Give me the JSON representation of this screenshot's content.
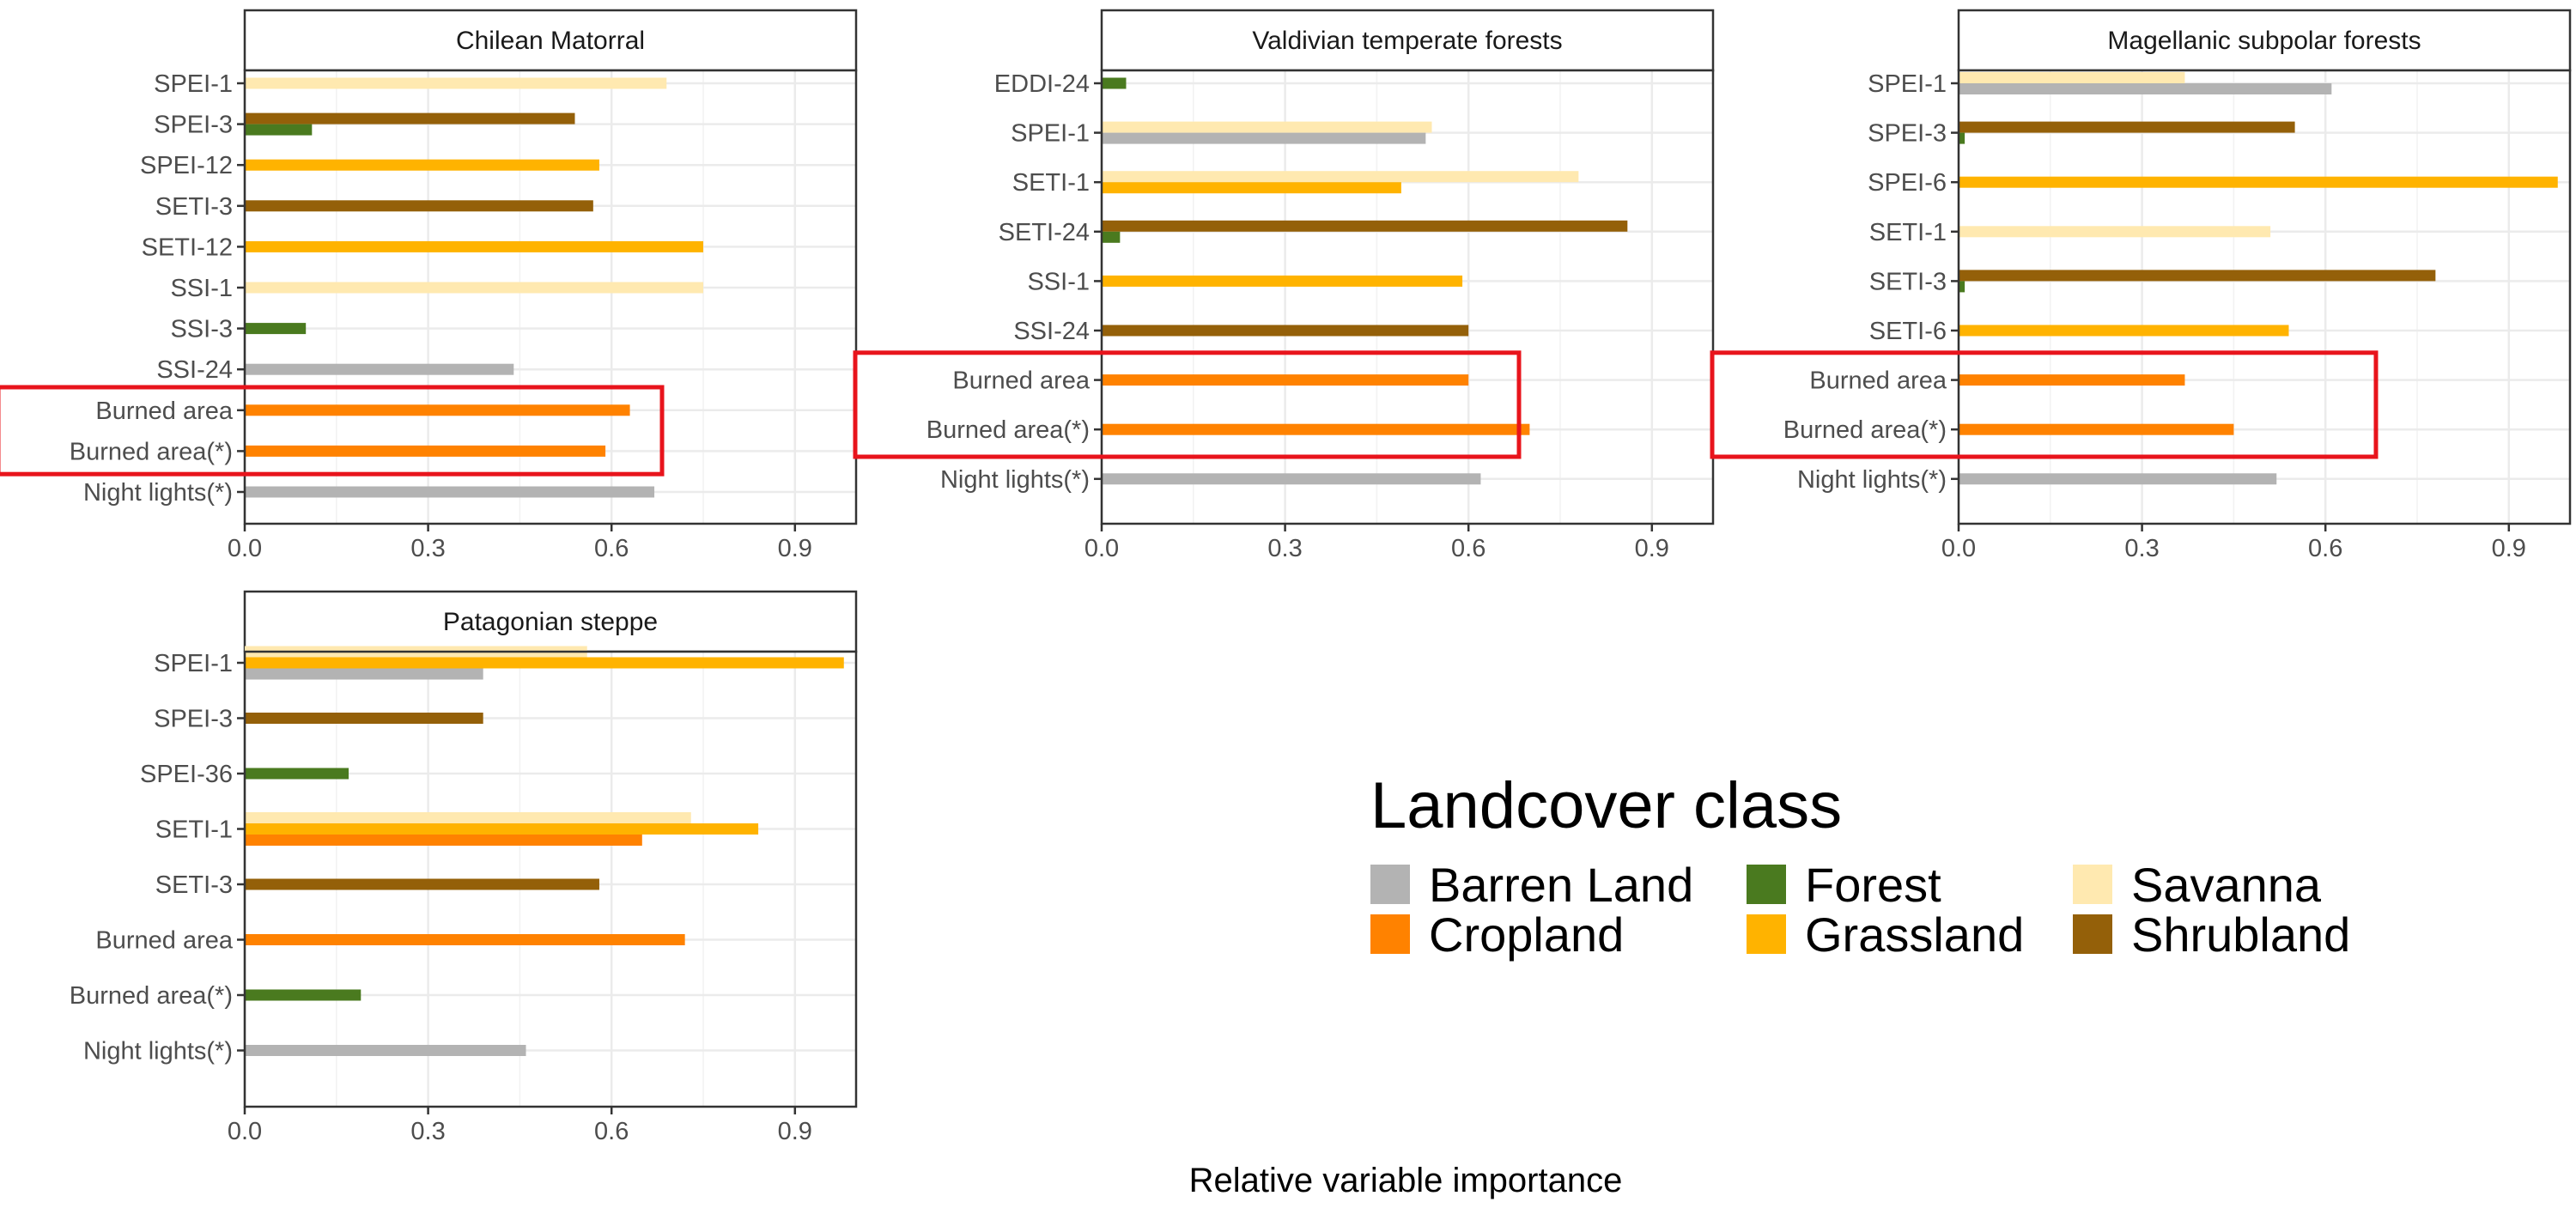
{
  "xlabel": "Relative variable importance",
  "legend": {
    "title": "Landcover class",
    "items": [
      {
        "name": "Barren Land",
        "color": "#b3b3b3"
      },
      {
        "name": "Cropland",
        "color": "#ff8200"
      },
      {
        "name": "Forest",
        "color": "#4a7a1f"
      },
      {
        "name": "Grassland",
        "color": "#ffb300"
      },
      {
        "name": "Savanna",
        "color": "#ffe9b0"
      },
      {
        "name": "Shrubland",
        "color": "#946009"
      }
    ]
  },
  "colors": {
    "Barren Land": "#b3b3b3",
    "Cropland": "#ff8200",
    "Forest": "#4a7a1f",
    "Grassland": "#ffb300",
    "Savanna": "#ffe9b0",
    "Shrubland": "#946009",
    "highlight": "#e8141c"
  },
  "chart_data": [
    {
      "type": "bar",
      "orientation": "horizontal",
      "title": "Chilean Matorral",
      "xlim": [
        0,
        1.0
      ],
      "xticks": [
        "0.0",
        "0.3",
        "0.6",
        "0.9"
      ],
      "xtick_values": [
        0,
        0.3,
        0.6,
        0.9
      ],
      "grid": true,
      "highlight": [
        "Burned area",
        "Burned area(*)"
      ],
      "categories": [
        "SPEI-1",
        "SPEI-3",
        "SPEI-12",
        "SETI-3",
        "SETI-12",
        "SSI-1",
        "SSI-3",
        "SSI-24",
        "Burned area",
        "Burned area(*)",
        "Night lights(*)"
      ],
      "bars": [
        {
          "category": "SPEI-1",
          "class": "Savanna",
          "value": 0.69
        },
        {
          "category": "SPEI-3",
          "class": "Shrubland",
          "value": 0.54
        },
        {
          "category": "SPEI-3",
          "class": "Forest",
          "value": 0.11
        },
        {
          "category": "SPEI-12",
          "class": "Grassland",
          "value": 0.58
        },
        {
          "category": "SETI-3",
          "class": "Shrubland",
          "value": 0.57
        },
        {
          "category": "SETI-12",
          "class": "Grassland",
          "value": 0.75
        },
        {
          "category": "SSI-1",
          "class": "Savanna",
          "value": 0.75
        },
        {
          "category": "SSI-3",
          "class": "Forest",
          "value": 0.1
        },
        {
          "category": "SSI-24",
          "class": "Barren Land",
          "value": 0.44
        },
        {
          "category": "Burned area",
          "class": "Cropland",
          "value": 0.63
        },
        {
          "category": "Burned area(*)",
          "class": "Cropland",
          "value": 0.59
        },
        {
          "category": "Night lights(*)",
          "class": "Barren Land",
          "value": 0.67
        }
      ]
    },
    {
      "type": "bar",
      "orientation": "horizontal",
      "title": "Valdivian temperate forests",
      "xlim": [
        0,
        1.0
      ],
      "xticks": [
        "0.0",
        "0.3",
        "0.6",
        "0.9"
      ],
      "xtick_values": [
        0,
        0.3,
        0.6,
        0.9
      ],
      "grid": true,
      "highlight": [
        "Burned area",
        "Burned area(*)"
      ],
      "categories": [
        "EDDI-24",
        "SPEI-1",
        "SETI-1",
        "SETI-24",
        "SSI-1",
        "SSI-24",
        "Burned area",
        "Burned area(*)",
        "Night lights(*)"
      ],
      "bars": [
        {
          "category": "EDDI-24",
          "class": "Forest",
          "value": 0.04
        },
        {
          "category": "SPEI-1",
          "class": "Savanna",
          "value": 0.54
        },
        {
          "category": "SPEI-1",
          "class": "Barren Land",
          "value": 0.53
        },
        {
          "category": "SETI-1",
          "class": "Savanna",
          "value": 0.78
        },
        {
          "category": "SETI-1",
          "class": "Grassland",
          "value": 0.49
        },
        {
          "category": "SETI-24",
          "class": "Shrubland",
          "value": 0.86
        },
        {
          "category": "SETI-24",
          "class": "Forest",
          "value": 0.03
        },
        {
          "category": "SSI-1",
          "class": "Grassland",
          "value": 0.59
        },
        {
          "category": "SSI-24",
          "class": "Shrubland",
          "value": 0.6
        },
        {
          "category": "Burned area",
          "class": "Cropland",
          "value": 0.6
        },
        {
          "category": "Burned area(*)",
          "class": "Cropland",
          "value": 0.7
        },
        {
          "category": "Night lights(*)",
          "class": "Barren Land",
          "value": 0.62
        }
      ]
    },
    {
      "type": "bar",
      "orientation": "horizontal",
      "title": "Magellanic subpolar forests",
      "xlim": [
        0,
        1.0
      ],
      "xticks": [
        "0.0",
        "0.3",
        "0.6",
        "0.9"
      ],
      "xtick_values": [
        0,
        0.3,
        0.6,
        0.9
      ],
      "grid": true,
      "highlight": [
        "Burned area",
        "Burned area(*)"
      ],
      "categories": [
        "SPEI-1",
        "SPEI-3",
        "SPEI-6",
        "SETI-1",
        "SETI-3",
        "SETI-6",
        "Burned area",
        "Burned area(*)",
        "Night lights(*)"
      ],
      "bars": [
        {
          "category": "SPEI-1",
          "class": "Savanna",
          "value": 0.37
        },
        {
          "category": "SPEI-1",
          "class": "Barren Land",
          "value": 0.61
        },
        {
          "category": "SPEI-3",
          "class": "Shrubland",
          "value": 0.55
        },
        {
          "category": "SPEI-3",
          "class": "Forest",
          "value": 0.01
        },
        {
          "category": "SPEI-6",
          "class": "Grassland",
          "value": 0.98
        },
        {
          "category": "SETI-1",
          "class": "Savanna",
          "value": 0.51
        },
        {
          "category": "SETI-3",
          "class": "Shrubland",
          "value": 0.78
        },
        {
          "category": "SETI-3",
          "class": "Forest",
          "value": 0.01
        },
        {
          "category": "SETI-6",
          "class": "Grassland",
          "value": 0.54
        },
        {
          "category": "Burned area",
          "class": "Cropland",
          "value": 0.37
        },
        {
          "category": "Burned area(*)",
          "class": "Cropland",
          "value": 0.45
        },
        {
          "category": "Night lights(*)",
          "class": "Barren Land",
          "value": 0.52
        }
      ]
    },
    {
      "type": "bar",
      "orientation": "horizontal",
      "title": "Patagonian steppe",
      "xlim": [
        0,
        1.0
      ],
      "xticks": [
        "0.0",
        "0.3",
        "0.6",
        "0.9"
      ],
      "xtick_values": [
        0,
        0.3,
        0.6,
        0.9
      ],
      "grid": true,
      "highlight": [],
      "categories": [
        "SPEI-1",
        "SPEI-3",
        "SPEI-36",
        "SETI-1",
        "SETI-3",
        "Burned area",
        "Burned area(*)",
        "Night lights(*)"
      ],
      "bars": [
        {
          "category": "SPEI-1",
          "class": "Savanna",
          "value": 0.56
        },
        {
          "category": "SPEI-1",
          "class": "Grassland",
          "value": 0.98
        },
        {
          "category": "SPEI-1",
          "class": "Barren Land",
          "value": 0.39
        },
        {
          "category": "SPEI-3",
          "class": "Shrubland",
          "value": 0.39
        },
        {
          "category": "SPEI-36",
          "class": "Forest",
          "value": 0.17
        },
        {
          "category": "SETI-1",
          "class": "Savanna",
          "value": 0.73
        },
        {
          "category": "SETI-1",
          "class": "Grassland",
          "value": 0.84
        },
        {
          "category": "SETI-1",
          "class": "Cropland",
          "value": 0.65
        },
        {
          "category": "SETI-3",
          "class": "Shrubland",
          "value": 0.58
        },
        {
          "category": "Burned area",
          "class": "Cropland",
          "value": 0.72
        },
        {
          "category": "Burned area(*)",
          "class": "Forest",
          "value": 0.19
        },
        {
          "category": "Night lights(*)",
          "class": "Barren Land",
          "value": 0.46
        }
      ]
    }
  ]
}
